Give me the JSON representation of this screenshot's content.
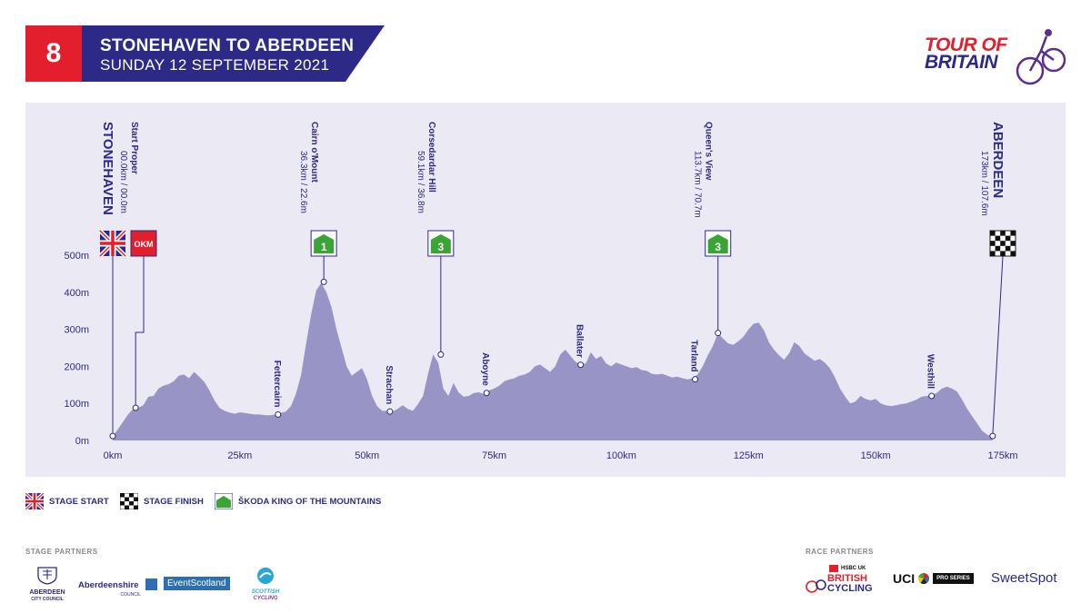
{
  "header": {
    "stage_number": "8",
    "title": "STONEHAVEN TO ABERDEEN",
    "date": "SUNDAY 12 SEPTEMBER 2021",
    "logo_line1": "TOUR OF",
    "logo_line2": "BRITAIN"
  },
  "colors": {
    "red": "#e31e2d",
    "navy": "#2d2a87",
    "profile_fill": "#9994c6",
    "panel_bg": "#ebe9f4",
    "kom_green": "#3aa535"
  },
  "chart_data": {
    "type": "area",
    "xlabel": "",
    "ylabel": "",
    "xlim": [
      0,
      175
    ],
    "ylim": [
      0,
      500
    ],
    "x_ticks": [
      0,
      25,
      50,
      75,
      100,
      125,
      150,
      175
    ],
    "x_tick_labels": [
      "0km",
      "25km",
      "50km",
      "75km",
      "100km",
      "125km",
      "150km",
      "175km"
    ],
    "y_ticks": [
      0,
      100,
      200,
      300,
      400,
      500
    ],
    "y_tick_labels": [
      "0m",
      "100m",
      "200m",
      "300m",
      "400m",
      "500m"
    ],
    "series": [
      {
        "x": [
          0,
          1,
          2,
          3,
          4,
          5,
          6,
          7,
          8,
          9,
          10,
          11,
          12,
          13,
          14,
          15,
          16,
          17,
          18,
          19,
          20,
          21,
          22,
          23,
          24,
          25,
          26,
          27,
          28,
          29,
          30,
          31,
          32,
          33,
          34,
          35,
          36,
          37,
          38,
          39,
          40,
          41,
          42,
          43,
          44,
          45,
          46,
          47,
          48,
          49,
          50,
          51,
          52,
          53,
          54,
          55,
          56,
          57,
          58,
          59,
          60,
          61,
          62,
          63,
          64,
          65,
          66,
          67,
          68,
          69,
          70,
          71,
          72,
          73,
          74,
          75,
          76,
          77,
          78,
          79,
          80,
          81,
          82,
          83,
          84,
          85,
          86,
          87,
          88,
          89,
          90,
          91,
          92,
          93,
          94,
          95,
          96,
          97,
          98,
          99,
          100,
          101,
          102,
          103,
          104,
          105,
          106,
          107,
          108,
          109,
          110,
          111,
          112,
          113,
          114,
          115,
          116,
          117,
          118,
          119,
          120,
          121,
          122,
          123,
          124,
          125,
          126,
          127,
          128,
          129,
          130,
          131,
          132,
          133,
          134,
          135,
          136,
          137,
          138,
          139,
          140,
          141,
          142,
          143,
          144,
          145,
          146,
          147,
          148,
          149,
          150,
          151,
          152,
          153,
          154,
          155,
          156,
          157,
          158,
          159,
          160,
          161,
          162,
          163,
          164,
          165,
          166,
          167,
          168,
          169,
          170,
          171,
          172,
          173
        ],
        "y": [
          12,
          30,
          50,
          70,
          85,
          88,
          95,
          118,
          120,
          140,
          148,
          152,
          160,
          175,
          178,
          168,
          185,
          172,
          158,
          135,
          108,
          88,
          80,
          75,
          72,
          76,
          74,
          72,
          70,
          70,
          68,
          68,
          70,
          74,
          78,
          92,
          125,
          175,
          260,
          340,
          405,
          425,
          400,
          360,
          300,
          250,
          200,
          175,
          185,
          195,
          165,
          120,
          92,
          80,
          80,
          78,
          85,
          95,
          85,
          80,
          98,
          120,
          180,
          232,
          210,
          140,
          120,
          155,
          130,
          118,
          120,
          128,
          130,
          125,
          135,
          140,
          148,
          160,
          165,
          168,
          175,
          178,
          185,
          200,
          205,
          195,
          185,
          200,
          232,
          245,
          228,
          212,
          205,
          208,
          238,
          220,
          228,
          208,
          200,
          210,
          205,
          200,
          195,
          198,
          190,
          188,
          180,
          178,
          180,
          175,
          170,
          172,
          168,
          165,
          168,
          178,
          200,
          230,
          255,
          290,
          275,
          262,
          258,
          268,
          280,
          300,
          315,
          318,
          298,
          265,
          245,
          230,
          218,
          235,
          265,
          255,
          235,
          225,
          215,
          220,
          210,
          195,
          170,
          140,
          118,
          100,
          105,
          120,
          112,
          108,
          112,
          100,
          95,
          93,
          95,
          98,
          100,
          105,
          110,
          118,
          120,
          122,
          128,
          140,
          145,
          140,
          132,
          110,
          85,
          65,
          45,
          25,
          15,
          10
        ]
      }
    ],
    "waypoints": [
      {
        "name": "Fettercairn",
        "km": 32.5,
        "alt": 70
      },
      {
        "name": "Strachan",
        "km": 54.5,
        "alt": 78
      },
      {
        "name": "Aboyne",
        "km": 73.5,
        "alt": 128
      },
      {
        "name": "Ballater",
        "km": 92,
        "alt": 204
      },
      {
        "name": "Tarland",
        "km": 114.5,
        "alt": 165
      },
      {
        "name": "Westhill",
        "km": 161,
        "alt": 120
      }
    ],
    "markers": [
      {
        "type": "start",
        "name": "STONEHAVEN",
        "detail": "",
        "km": 0,
        "alt": 12
      },
      {
        "type": "okm",
        "name": "Start Proper",
        "detail": "00.0km / 00.0m",
        "badge": "OKM",
        "km": 4.5,
        "alt": 88
      },
      {
        "type": "kom",
        "name": "Cairn o'Mount",
        "detail": "36.3km / 22.6m",
        "badge": "1",
        "km": 41.5,
        "alt": 428
      },
      {
        "type": "kom",
        "name": "Corsedardar Hill",
        "detail": "59.1km / 36.8m",
        "badge": "3",
        "km": 64.5,
        "alt": 232
      },
      {
        "type": "kom",
        "name": "Queen's View",
        "detail": "113.7km / 70.7m",
        "badge": "3",
        "km": 119,
        "alt": 290
      },
      {
        "type": "finish",
        "name": "ABERDEEN",
        "detail": "173km / 107.6m",
        "km": 173,
        "alt": 12
      }
    ]
  },
  "legend": {
    "stage_start": "STAGE START",
    "stage_finish": "STAGE FINISH",
    "kom": "ŠKODA KING OF THE MOUNTAINS"
  },
  "partners": {
    "stage_label": "STAGE PARTNERS",
    "race_label": "RACE PARTNERS",
    "stage": [
      "ABERDEEN",
      "CITY COUNCIL",
      "Aberdeenshire",
      "COUNCIL",
      "EventScotland",
      "SCOTTISH",
      "CYCLING"
    ],
    "race": [
      "HSBC UK",
      "BRITISH",
      "CYCLING",
      "UCI",
      "PRO SERIES",
      "SweetSpot"
    ]
  }
}
